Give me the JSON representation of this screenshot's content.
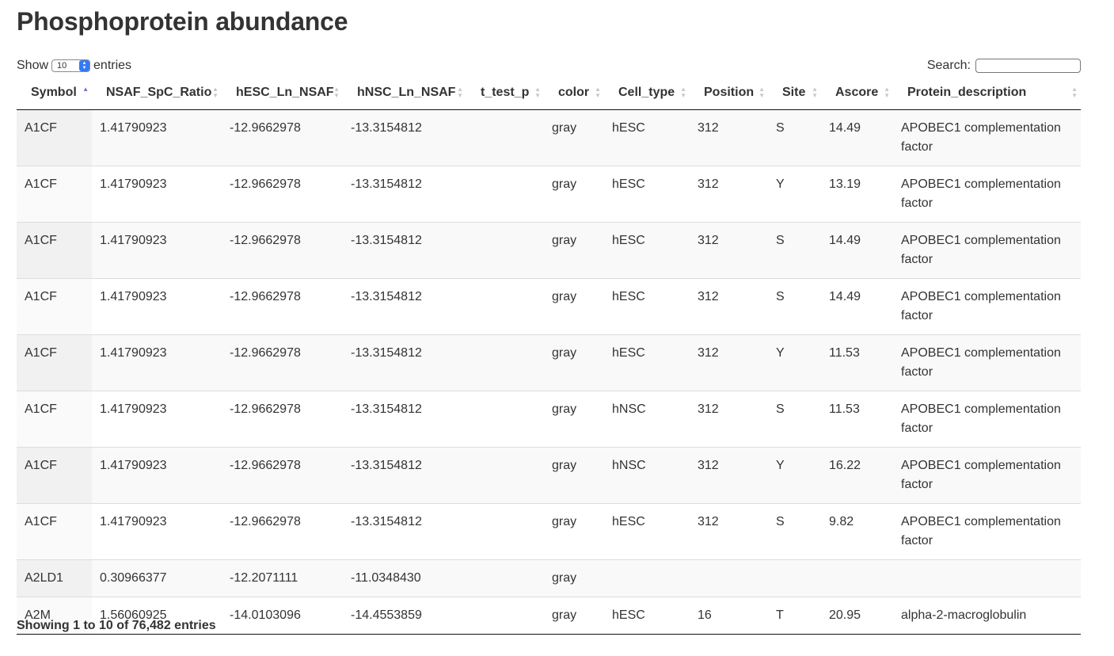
{
  "page": {
    "title": "Phosphoprotein abundance"
  },
  "length_control": {
    "prefix": "Show",
    "selected": "10",
    "suffix": "entries"
  },
  "search": {
    "label": "Search:",
    "value": ""
  },
  "table": {
    "columns": [
      "Symbol",
      "NSAF_SpC_Ratio",
      "hESC_Ln_NSAF",
      "hNSC_Ln_NSAF",
      "t_test_p",
      "color",
      "Cell_type",
      "Position",
      "Site",
      "Ascore",
      "Protein_description"
    ],
    "sorted_column": "Symbol",
    "sort_direction": "ascending",
    "rows": [
      [
        "A1CF",
        "1.41790923",
        "-12.9662978",
        "-13.3154812",
        "",
        "gray",
        "hESC",
        "312",
        "S",
        "14.49",
        "APOBEC1 complementation factor"
      ],
      [
        "A1CF",
        "1.41790923",
        "-12.9662978",
        "-13.3154812",
        "",
        "gray",
        "hESC",
        "312",
        "Y",
        "13.19",
        "APOBEC1 complementation factor"
      ],
      [
        "A1CF",
        "1.41790923",
        "-12.9662978",
        "-13.3154812",
        "",
        "gray",
        "hESC",
        "312",
        "S",
        "14.49",
        "APOBEC1 complementation factor"
      ],
      [
        "A1CF",
        "1.41790923",
        "-12.9662978",
        "-13.3154812",
        "",
        "gray",
        "hESC",
        "312",
        "S",
        "14.49",
        "APOBEC1 complementation factor"
      ],
      [
        "A1CF",
        "1.41790923",
        "-12.9662978",
        "-13.3154812",
        "",
        "gray",
        "hESC",
        "312",
        "Y",
        "11.53",
        "APOBEC1 complementation factor"
      ],
      [
        "A1CF",
        "1.41790923",
        "-12.9662978",
        "-13.3154812",
        "",
        "gray",
        "hNSC",
        "312",
        "S",
        "11.53",
        "APOBEC1 complementation factor"
      ],
      [
        "A1CF",
        "1.41790923",
        "-12.9662978",
        "-13.3154812",
        "",
        "gray",
        "hNSC",
        "312",
        "Y",
        "16.22",
        "APOBEC1 complementation factor"
      ],
      [
        "A1CF",
        "1.41790923",
        "-12.9662978",
        "-13.3154812",
        "",
        "gray",
        "hESC",
        "312",
        "S",
        "9.82",
        "APOBEC1 complementation factor"
      ],
      [
        "A2LD1",
        "0.30966377",
        "-12.2071111",
        "-11.0348430",
        "",
        "gray",
        "",
        "",
        "",
        "",
        ""
      ],
      [
        "A2M",
        "1.56060925",
        "-14.0103096",
        "-14.4553859",
        "",
        "gray",
        "hESC",
        "16",
        "T",
        "20.95",
        "alpha-2-macroglobulin"
      ]
    ]
  },
  "info": {
    "text": "Showing 1 to 10 of 76,482 entries"
  },
  "colors": {
    "text": "#333333",
    "sort_active": "#6a6fc9",
    "sort_inactive": "#c8c8c8",
    "stripe": "#f9f9f9",
    "select_arrow": "#3478f6"
  }
}
